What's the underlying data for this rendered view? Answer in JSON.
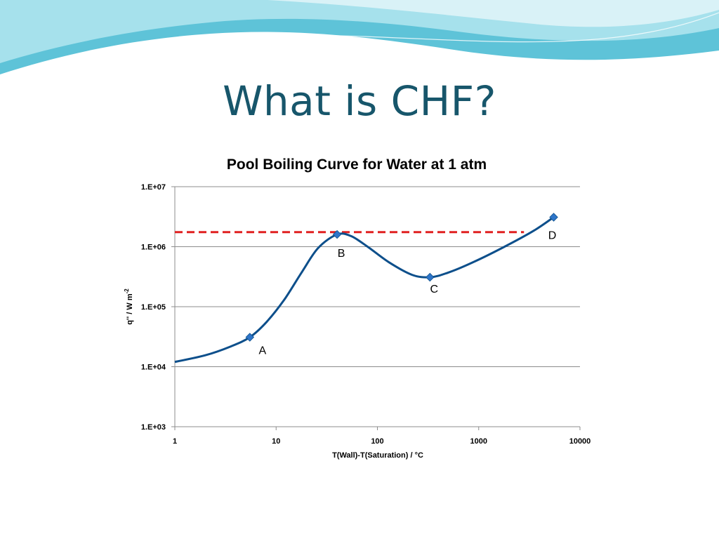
{
  "slide": {
    "title": "What is CHF?"
  },
  "theme": {
    "title_color": "#17566b",
    "curve_color": "#0d4f8b",
    "marker_color": "#2e75c9",
    "chf_line_color": "#e02020",
    "wave_colors": [
      "#5ec3d8",
      "#a6e1ec",
      "#d9f2f7"
    ]
  },
  "chart_data": {
    "type": "line",
    "title": "Pool Boiling Curve for Water at 1 atm",
    "xlabel": "T(Wall)-T(Saturation) / °C",
    "ylabel_main": "q'' / W m",
    "ylabel_sup": "-2",
    "x_scale": "log",
    "y_scale": "log",
    "xlim": [
      1,
      10000
    ],
    "ylim": [
      1000,
      10000000
    ],
    "x_ticks": [
      1,
      10,
      100,
      1000,
      10000
    ],
    "x_tick_labels": [
      "1",
      "10",
      "100",
      "1000",
      "10000"
    ],
    "y_ticks": [
      1000,
      10000,
      100000,
      1000000,
      10000000
    ],
    "y_tick_labels": [
      "1.E+03",
      "1.E+04",
      "1.E+05",
      "1.E+06",
      "1.E+07"
    ],
    "grid": "horizontal",
    "series": [
      {
        "curve": [
          [
            1,
            12000
          ],
          [
            2,
            15500
          ],
          [
            3.5,
            21500
          ],
          [
            5.5,
            31000
          ],
          [
            8,
            55000
          ],
          [
            12,
            130000
          ],
          [
            18,
            380000
          ],
          [
            26,
            950000
          ],
          [
            40,
            1600000
          ],
          [
            55,
            1500000
          ],
          [
            80,
            1000000
          ],
          [
            130,
            550000
          ],
          [
            220,
            340000
          ],
          [
            330,
            310000
          ],
          [
            500,
            370000
          ],
          [
            900,
            560000
          ],
          [
            1800,
            1000000
          ],
          [
            3500,
            1850000
          ],
          [
            5500,
            3100000
          ]
        ],
        "markers": [
          {
            "label": "A",
            "x": 5.5,
            "y": 31000
          },
          {
            "label": "B",
            "x": 40,
            "y": 1600000
          },
          {
            "label": "C",
            "x": 330,
            "y": 310000
          },
          {
            "label": "D",
            "x": 5500,
            "y": 3100000
          }
        ]
      }
    ],
    "chf_line": {
      "y": 1750000,
      "x_start": 1,
      "x_end": 2800,
      "style": "dashed"
    }
  }
}
